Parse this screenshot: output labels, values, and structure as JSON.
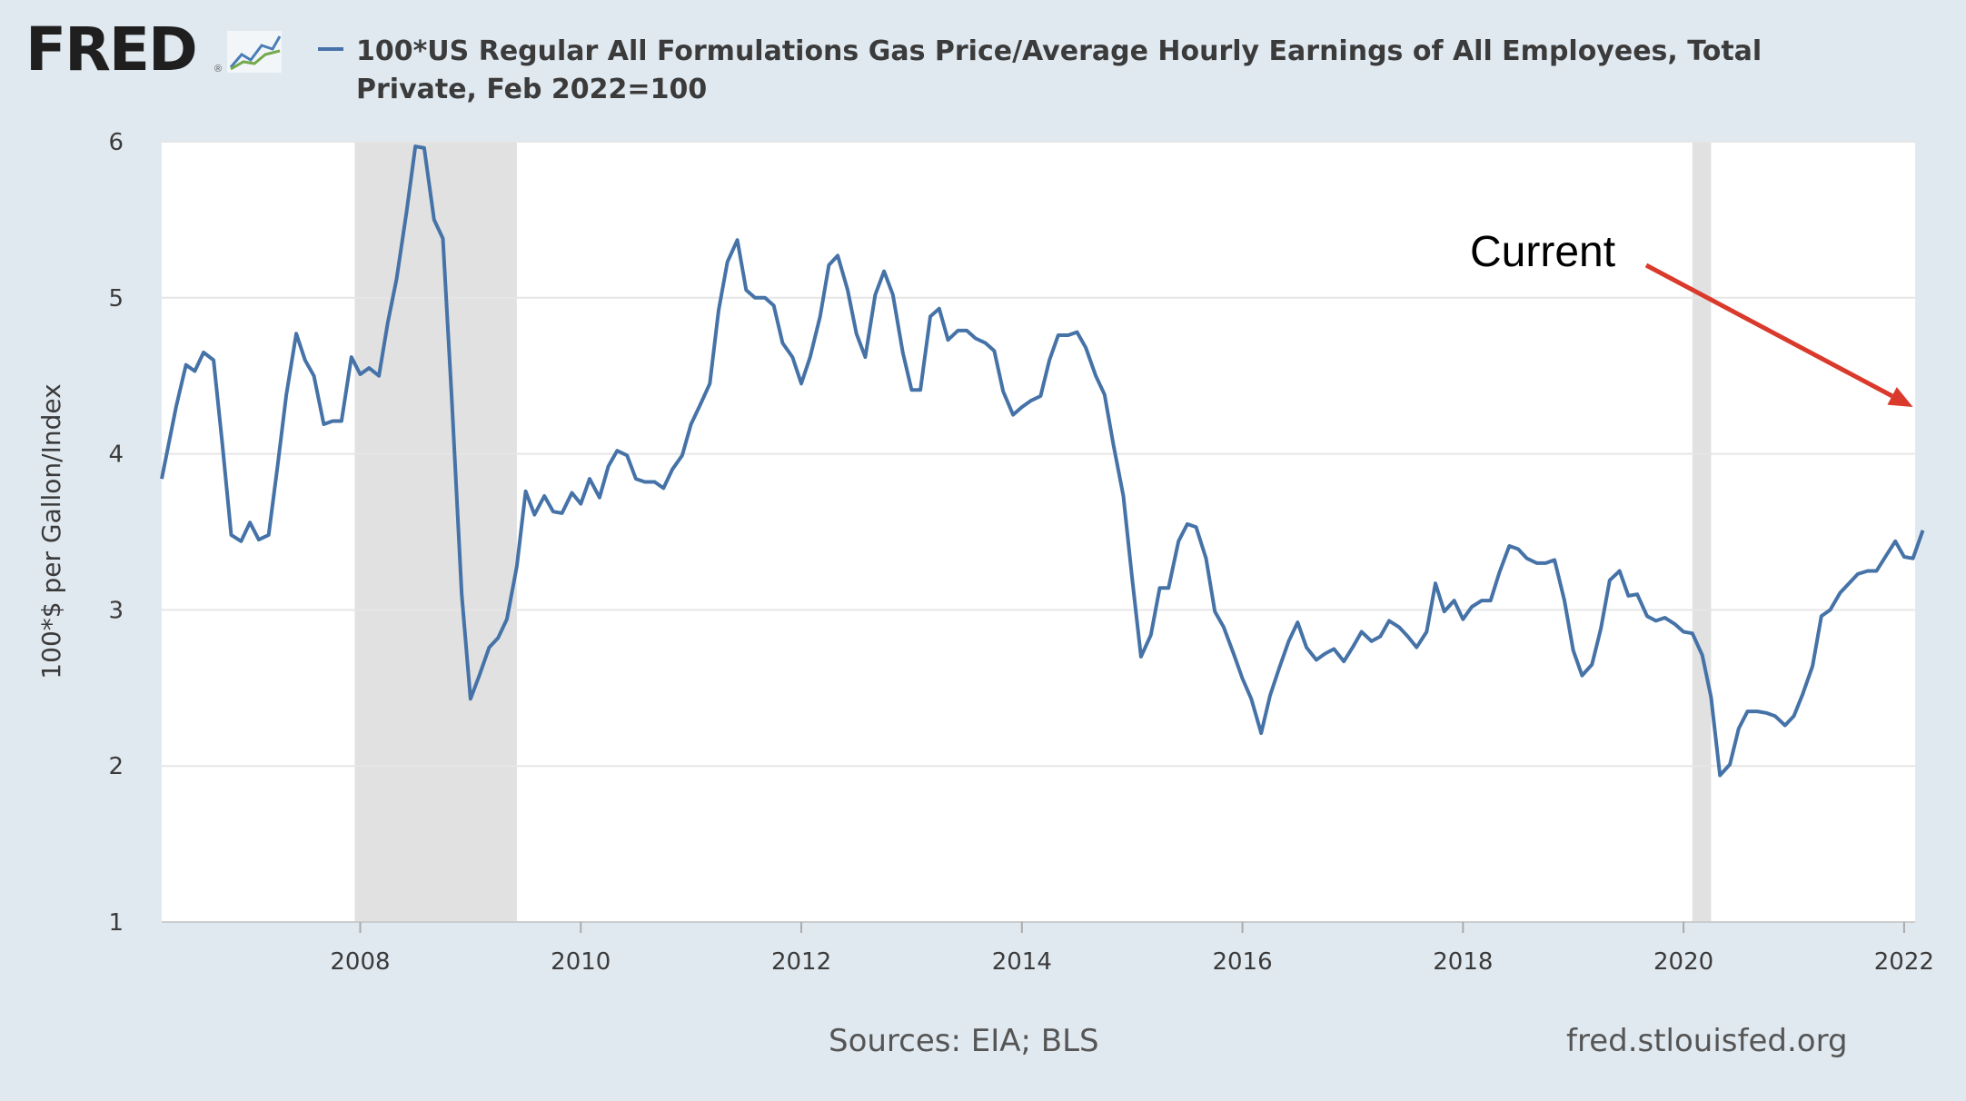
{
  "header": {
    "logo": "FRED",
    "logo_icon": "line-chart-icon",
    "series_title": "100*US Regular All Formulations Gas Price/Average Hourly Earnings of All Employees, Total Private, Feb 2022=100"
  },
  "footer": {
    "sources": "Sources: EIA; BLS",
    "site": "fred.stlouisfed.org"
  },
  "colors": {
    "background": "#e1e9f0",
    "plot_bg": "#ffffff",
    "series": "#4572a7",
    "recession": "#e1e1e1",
    "arrow": "#d93a2b"
  },
  "chart_data": {
    "type": "line",
    "title": "100*US Regular All Formulations Gas Price/Average Hourly Earnings of All Employees, Total Private, Feb 2022=100",
    "ylabel": "100*$ per Gallon/Index",
    "xlabel": "",
    "ylim": [
      1,
      6
    ],
    "xlim": [
      2006.2,
      2022.1
    ],
    "x_ticks": [
      2008,
      2010,
      2012,
      2014,
      2016,
      2018,
      2020,
      2022
    ],
    "y_ticks": [
      1,
      2,
      3,
      4,
      5,
      6
    ],
    "grid": true,
    "recessions": [
      [
        2007.95,
        2009.42
      ],
      [
        2020.08,
        2020.25
      ]
    ],
    "annotation": {
      "text": "Current",
      "points_to": [
        2022.08,
        4.3
      ]
    },
    "series": [
      {
        "color": "#4572a7",
        "points": [
          [
            2006.2,
            3.84
          ],
          [
            2006.33,
            4.3
          ],
          [
            2006.42,
            4.57
          ],
          [
            2006.5,
            4.53
          ],
          [
            2006.58,
            4.65
          ],
          [
            2006.67,
            4.6
          ],
          [
            2006.75,
            4.06
          ],
          [
            2006.83,
            3.48
          ],
          [
            2006.92,
            3.44
          ],
          [
            2007.0,
            3.56
          ],
          [
            2007.08,
            3.45
          ],
          [
            2007.17,
            3.48
          ],
          [
            2007.25,
            3.92
          ],
          [
            2007.33,
            4.38
          ],
          [
            2007.42,
            4.77
          ],
          [
            2007.5,
            4.6
          ],
          [
            2007.58,
            4.5
          ],
          [
            2007.67,
            4.19
          ],
          [
            2007.75,
            4.21
          ],
          [
            2007.83,
            4.21
          ],
          [
            2007.92,
            4.62
          ],
          [
            2008.0,
            4.51
          ],
          [
            2008.08,
            4.55
          ],
          [
            2008.17,
            4.5
          ],
          [
            2008.25,
            4.84
          ],
          [
            2008.33,
            5.12
          ],
          [
            2008.42,
            5.55
          ],
          [
            2008.5,
            5.97
          ],
          [
            2008.58,
            5.96
          ],
          [
            2008.67,
            5.5
          ],
          [
            2008.75,
            5.38
          ],
          [
            2008.83,
            4.36
          ],
          [
            2008.92,
            3.1
          ],
          [
            2009.0,
            2.43
          ],
          [
            2009.08,
            2.58
          ],
          [
            2009.17,
            2.76
          ],
          [
            2009.25,
            2.82
          ],
          [
            2009.33,
            2.94
          ],
          [
            2009.42,
            3.28
          ],
          [
            2009.5,
            3.76
          ],
          [
            2009.58,
            3.61
          ],
          [
            2009.67,
            3.73
          ],
          [
            2009.75,
            3.63
          ],
          [
            2009.83,
            3.62
          ],
          [
            2009.92,
            3.75
          ],
          [
            2010.0,
            3.68
          ],
          [
            2010.08,
            3.84
          ],
          [
            2010.17,
            3.72
          ],
          [
            2010.25,
            3.92
          ],
          [
            2010.33,
            4.02
          ],
          [
            2010.42,
            3.99
          ],
          [
            2010.5,
            3.84
          ],
          [
            2010.58,
            3.82
          ],
          [
            2010.67,
            3.82
          ],
          [
            2010.75,
            3.78
          ],
          [
            2010.83,
            3.9
          ],
          [
            2010.92,
            3.99
          ],
          [
            2011.0,
            4.19
          ],
          [
            2011.08,
            4.31
          ],
          [
            2011.17,
            4.45
          ],
          [
            2011.25,
            4.92
          ],
          [
            2011.33,
            5.23
          ],
          [
            2011.42,
            5.37
          ],
          [
            2011.5,
            5.05
          ],
          [
            2011.58,
            5.0
          ],
          [
            2011.67,
            5.0
          ],
          [
            2011.75,
            4.95
          ],
          [
            2011.83,
            4.71
          ],
          [
            2011.92,
            4.62
          ],
          [
            2012.0,
            4.45
          ],
          [
            2012.08,
            4.62
          ],
          [
            2012.17,
            4.88
          ],
          [
            2012.25,
            5.21
          ],
          [
            2012.33,
            5.27
          ],
          [
            2012.42,
            5.05
          ],
          [
            2012.5,
            4.77
          ],
          [
            2012.58,
            4.62
          ],
          [
            2012.67,
            5.02
          ],
          [
            2012.75,
            5.17
          ],
          [
            2012.83,
            5.02
          ],
          [
            2012.92,
            4.65
          ],
          [
            2013.0,
            4.41
          ],
          [
            2013.08,
            4.41
          ],
          [
            2013.17,
            4.88
          ],
          [
            2013.25,
            4.93
          ],
          [
            2013.33,
            4.73
          ],
          [
            2013.42,
            4.79
          ],
          [
            2013.5,
            4.79
          ],
          [
            2013.58,
            4.74
          ],
          [
            2013.67,
            4.71
          ],
          [
            2013.75,
            4.66
          ],
          [
            2013.83,
            4.4
          ],
          [
            2013.92,
            4.25
          ],
          [
            2014.0,
            4.3
          ],
          [
            2014.08,
            4.34
          ],
          [
            2014.17,
            4.37
          ],
          [
            2014.25,
            4.6
          ],
          [
            2014.33,
            4.76
          ],
          [
            2014.42,
            4.76
          ],
          [
            2014.5,
            4.78
          ],
          [
            2014.58,
            4.68
          ],
          [
            2014.67,
            4.5
          ],
          [
            2014.75,
            4.38
          ],
          [
            2014.83,
            4.06
          ],
          [
            2014.92,
            3.73
          ],
          [
            2015.0,
            3.2
          ],
          [
            2015.08,
            2.7
          ],
          [
            2015.17,
            2.84
          ],
          [
            2015.25,
            3.14
          ],
          [
            2015.33,
            3.14
          ],
          [
            2015.42,
            3.44
          ],
          [
            2015.5,
            3.55
          ],
          [
            2015.58,
            3.53
          ],
          [
            2015.67,
            3.33
          ],
          [
            2015.75,
            2.99
          ],
          [
            2015.83,
            2.89
          ],
          [
            2015.92,
            2.72
          ],
          [
            2016.0,
            2.56
          ],
          [
            2016.08,
            2.43
          ],
          [
            2016.17,
            2.21
          ],
          [
            2016.25,
            2.45
          ],
          [
            2016.33,
            2.62
          ],
          [
            2016.42,
            2.8
          ],
          [
            2016.5,
            2.92
          ],
          [
            2016.58,
            2.76
          ],
          [
            2016.67,
            2.68
          ],
          [
            2016.75,
            2.72
          ],
          [
            2016.83,
            2.75
          ],
          [
            2016.92,
            2.67
          ],
          [
            2017.0,
            2.76
          ],
          [
            2017.08,
            2.86
          ],
          [
            2017.17,
            2.8
          ],
          [
            2017.25,
            2.83
          ],
          [
            2017.33,
            2.93
          ],
          [
            2017.42,
            2.89
          ],
          [
            2017.5,
            2.83
          ],
          [
            2017.58,
            2.76
          ],
          [
            2017.67,
            2.86
          ],
          [
            2017.75,
            3.17
          ],
          [
            2017.83,
            2.99
          ],
          [
            2017.92,
            3.06
          ],
          [
            2018.0,
            2.94
          ],
          [
            2018.08,
            3.02
          ],
          [
            2018.17,
            3.06
          ],
          [
            2018.25,
            3.06
          ],
          [
            2018.33,
            3.24
          ],
          [
            2018.42,
            3.41
          ],
          [
            2018.5,
            3.39
          ],
          [
            2018.58,
            3.33
          ],
          [
            2018.67,
            3.3
          ],
          [
            2018.75,
            3.3
          ],
          [
            2018.83,
            3.32
          ],
          [
            2018.92,
            3.06
          ],
          [
            2019.0,
            2.74
          ],
          [
            2019.08,
            2.58
          ],
          [
            2019.17,
            2.65
          ],
          [
            2019.25,
            2.88
          ],
          [
            2019.33,
            3.19
          ],
          [
            2019.42,
            3.25
          ],
          [
            2019.5,
            3.09
          ],
          [
            2019.58,
            3.1
          ],
          [
            2019.67,
            2.96
          ],
          [
            2019.75,
            2.93
          ],
          [
            2019.83,
            2.95
          ],
          [
            2019.92,
            2.91
          ],
          [
            2020.0,
            2.86
          ],
          [
            2020.08,
            2.85
          ],
          [
            2020.17,
            2.71
          ],
          [
            2020.25,
            2.44
          ],
          [
            2020.33,
            1.94
          ],
          [
            2020.42,
            2.01
          ],
          [
            2020.5,
            2.24
          ],
          [
            2020.58,
            2.35
          ],
          [
            2020.67,
            2.35
          ],
          [
            2020.75,
            2.34
          ],
          [
            2020.83,
            2.32
          ],
          [
            2020.92,
            2.26
          ],
          [
            2021.0,
            2.32
          ],
          [
            2021.08,
            2.46
          ],
          [
            2021.17,
            2.64
          ],
          [
            2021.25,
            2.96
          ],
          [
            2021.33,
            3.0
          ],
          [
            2021.42,
            3.11
          ],
          [
            2021.5,
            3.17
          ],
          [
            2021.58,
            3.23
          ],
          [
            2021.67,
            3.25
          ],
          [
            2021.75,
            3.25
          ],
          [
            2021.83,
            3.34
          ],
          [
            2021.92,
            3.44
          ],
          [
            2022.0,
            3.34
          ],
          [
            2022.08,
            3.33
          ],
          [
            2022.17,
            3.51
          ]
        ]
      }
    ]
  }
}
